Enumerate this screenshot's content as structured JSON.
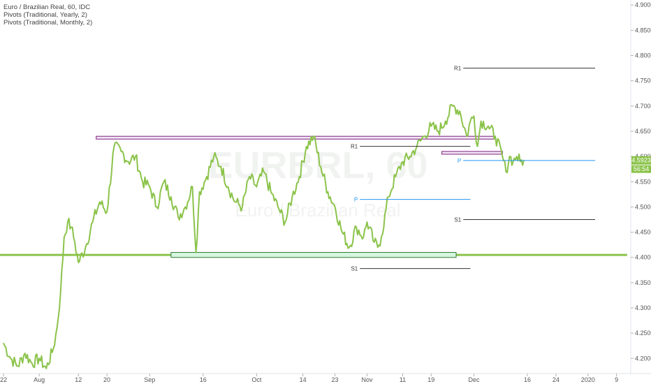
{
  "legend": {
    "title": "Euro / Brazilian Real, 60, IDC",
    "indicator1": "Pivots (Traditional, Yearly, 2)",
    "indicator2": "Pivots (Traditional, Monthly, 2)"
  },
  "watermark": {
    "symbol": "EURBRL, 60",
    "name": "Euro / Brazilian Real"
  },
  "colors": {
    "price_line": "#8bc34a",
    "support_line": "#8bc34a",
    "resistance_box_fill": "#f3e5f5",
    "resistance_box_stroke": "#7b1f7b",
    "support_box_fill": "#d6f5e0",
    "support_box_stroke": "#2e7d32",
    "pivot_p": "#2196f3",
    "pivot_level": "#333333",
    "axis_text": "#555555",
    "price_badge": "#8bc34a",
    "countdown_badge": "#8bc34a"
  },
  "price_badge": {
    "value": "4.5923",
    "countdown": "56:54"
  },
  "chart_data": {
    "type": "line",
    "ylim": [
      4.17,
      4.91
    ],
    "y_ticks": [
      "4.9000",
      "4.8500",
      "4.8000",
      "4.7500",
      "4.7000",
      "4.6500",
      "4.6000",
      "4.5500",
      "4.5000",
      "4.4500",
      "4.4000",
      "4.3500",
      "4.3000",
      "4.2500",
      "4.2000"
    ],
    "x_ticks": [
      {
        "label": "22",
        "day": 0
      },
      {
        "label": "Aug",
        "day": 10
      },
      {
        "label": "12",
        "day": 21
      },
      {
        "label": "20",
        "day": 29
      },
      {
        "label": "Sep",
        "day": 41
      },
      {
        "label": "16",
        "day": 56
      },
      {
        "label": "Oct",
        "day": 71
      },
      {
        "label": "14",
        "day": 84
      },
      {
        "label": "23",
        "day": 93
      },
      {
        "label": "Nov",
        "day": 102
      },
      {
        "label": "11",
        "day": 112
      },
      {
        "label": "19",
        "day": 120
      },
      {
        "label": "Dec",
        "day": 132
      },
      {
        "label": "16",
        "day": 147
      },
      {
        "label": "24",
        "day": 155
      },
      {
        "label": "2020",
        "day": 164
      },
      {
        "label": "9",
        "day": 172
      }
    ],
    "x_range_days": [
      -1,
      176
    ],
    "series": [
      {
        "x": [
          0,
          2,
          4,
          6,
          8,
          10,
          12,
          14,
          15,
          16,
          17,
          18,
          19,
          20,
          21,
          23,
          25,
          27,
          29,
          31,
          33,
          35,
          37,
          39,
          41,
          43,
          45,
          47,
          49,
          51,
          53,
          54,
          55,
          57,
          59,
          61,
          63,
          65,
          67,
          69,
          71,
          73,
          75,
          77,
          79,
          81,
          83,
          85,
          87,
          89,
          91,
          93,
          95,
          97,
          99,
          101,
          102,
          104,
          105,
          106,
          108,
          110,
          112,
          114,
          116,
          118,
          120,
          122,
          124,
          126,
          128,
          130,
          131,
          132,
          133,
          134,
          136,
          138,
          140,
          141,
          142,
          143,
          144,
          145,
          146
        ],
        "y": [
          4.23,
          4.2,
          4.185,
          4.21,
          4.19,
          4.2,
          4.18,
          4.22,
          4.26,
          4.33,
          4.44,
          4.47,
          4.46,
          4.43,
          4.39,
          4.42,
          4.47,
          4.51,
          4.49,
          4.62,
          4.61,
          4.59,
          4.6,
          4.55,
          4.54,
          4.5,
          4.55,
          4.52,
          4.48,
          4.5,
          4.54,
          4.41,
          4.53,
          4.56,
          4.6,
          4.58,
          4.54,
          4.51,
          4.5,
          4.56,
          4.54,
          4.57,
          4.53,
          4.5,
          4.47,
          4.52,
          4.56,
          4.62,
          4.64,
          4.58,
          4.53,
          4.5,
          4.45,
          4.42,
          4.46,
          4.44,
          4.47,
          4.43,
          4.42,
          4.44,
          4.52,
          4.56,
          4.59,
          4.6,
          4.62,
          4.64,
          4.66,
          4.65,
          4.67,
          4.7,
          4.69,
          4.64,
          4.67,
          4.68,
          4.62,
          4.67,
          4.66,
          4.64,
          4.6,
          4.57,
          4.6,
          4.59,
          4.6,
          4.59,
          4.5923
        ]
      }
    ],
    "horizontal_levels": [
      {
        "kind": "line",
        "value": 4.405,
        "x_from": -1,
        "x_to": 175
      },
      {
        "kind": "box",
        "top": 4.64,
        "bottom": 4.635,
        "x_from": 26,
        "x_to": 138,
        "style": "resistance"
      },
      {
        "kind": "box",
        "top": 4.61,
        "bottom": 4.605,
        "x_from": 123,
        "x_to": 140,
        "style": "resistance"
      },
      {
        "kind": "box",
        "top": 4.41,
        "bottom": 4.4,
        "x_from": 47,
        "x_to": 127,
        "style": "support"
      }
    ],
    "pivots": [
      {
        "label": "R1",
        "value": 4.62,
        "x_from": 100,
        "x_to": 131,
        "color_key": "pivot_level"
      },
      {
        "label": "P",
        "value": 4.515,
        "x_from": 100,
        "x_to": 131,
        "color_key": "pivot_p"
      },
      {
        "label": "S1",
        "value": 4.378,
        "x_from": 100,
        "x_to": 131,
        "color_key": "pivot_level"
      },
      {
        "label": "R1",
        "value": 4.775,
        "x_from": 129,
        "x_to": 166,
        "color_key": "pivot_level"
      },
      {
        "label": "P",
        "value": 4.592,
        "x_from": 129,
        "x_to": 166,
        "color_key": "pivot_p"
      },
      {
        "label": "S1",
        "value": 4.475,
        "x_from": 129,
        "x_to": 166,
        "color_key": "pivot_level"
      }
    ]
  }
}
